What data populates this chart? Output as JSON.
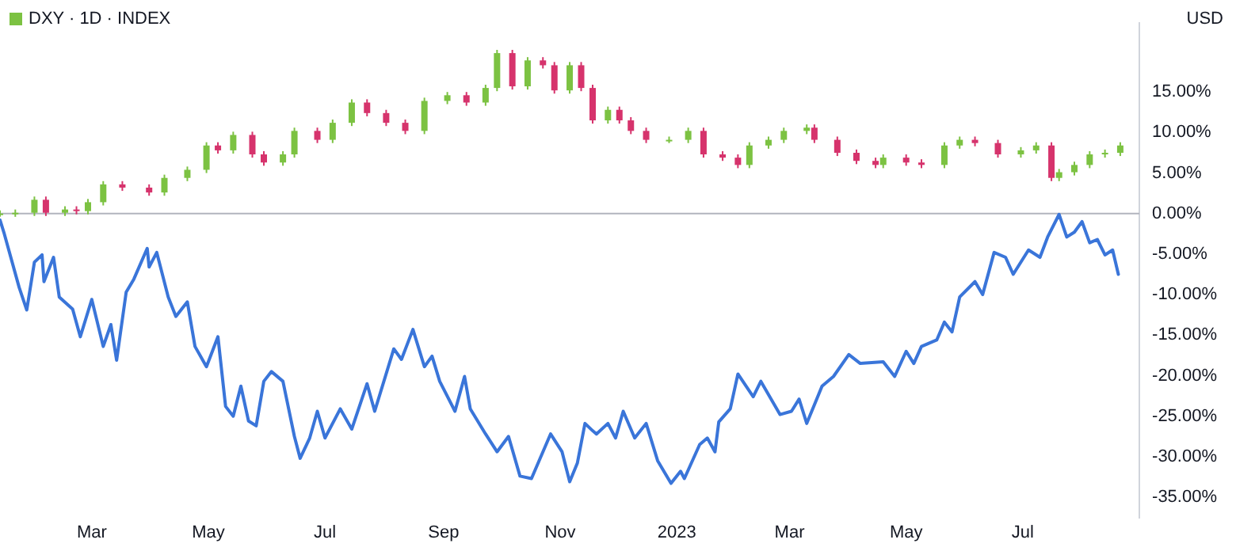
{
  "chart_data": {
    "type": "line",
    "ylabel": "USD",
    "legend": "top left",
    "grid": false,
    "xlim": [
      "2022-01-12",
      "2023-08-31"
    ],
    "xticks": [
      {
        "value": "2022-03-01",
        "label": "Mar"
      },
      {
        "value": "2022-05-01",
        "label": "May"
      },
      {
        "value": "2022-07-01",
        "label": "Jul"
      },
      {
        "value": "2022-09-01",
        "label": "Sep"
      },
      {
        "value": "2022-11-01",
        "label": "Nov"
      },
      {
        "value": "2023-01-01",
        "label": "2023"
      },
      {
        "value": "2023-03-01",
        "label": "Mar"
      },
      {
        "value": "2023-05-01",
        "label": "May"
      },
      {
        "value": "2023-07-01",
        "label": "Jul"
      }
    ],
    "ylim": [
      -37.5,
      23.5
    ],
    "yticks": [
      {
        "value": 15,
        "label": "15.00%"
      },
      {
        "value": 10,
        "label": "10.00%"
      },
      {
        "value": 5,
        "label": "5.00%"
      },
      {
        "value": 0,
        "label": "0.00%"
      },
      {
        "value": -5,
        "label": "-5.00%"
      },
      {
        "value": -10,
        "label": "-10.00%"
      },
      {
        "value": -15,
        "label": "-15.00%"
      },
      {
        "value": -20,
        "label": "-20.00%"
      },
      {
        "value": -25,
        "label": "-25.00%"
      },
      {
        "value": -30,
        "label": "-30.00%"
      },
      {
        "value": -35,
        "label": "-35.00%"
      }
    ],
    "ref_lines": [
      {
        "axis": "y",
        "value": 0,
        "color": "#b2b5be"
      }
    ],
    "series": [
      {
        "color": "#3a75d9",
        "x": [
          "2022-01-12",
          "2022-01-14",
          "2022-01-22",
          "2022-01-26",
          "2022-01-30",
          "2022-02-03",
          "2022-02-04",
          "2022-02-09",
          "2022-02-12",
          "2022-02-19",
          "2022-02-23",
          "2022-03-01",
          "2022-03-07",
          "2022-03-11",
          "2022-03-14",
          "2022-03-19",
          "2022-03-23",
          "2022-03-30",
          "2022-03-31",
          "2022-04-04",
          "2022-04-10",
          "2022-04-14",
          "2022-04-20",
          "2022-04-24",
          "2022-04-30",
          "2022-05-06",
          "2022-05-10",
          "2022-05-14",
          "2022-05-18",
          "2022-05-22",
          "2022-05-26",
          "2022-05-30",
          "2022-06-03",
          "2022-06-09",
          "2022-06-15",
          "2022-06-18",
          "2022-06-23",
          "2022-06-27",
          "2022-07-01",
          "2022-07-09",
          "2022-07-15",
          "2022-07-23",
          "2022-07-27",
          "2022-08-06",
          "2022-08-10",
          "2022-08-16",
          "2022-08-22",
          "2022-08-26",
          "2022-08-30",
          "2022-09-07",
          "2022-09-12",
          "2022-09-15",
          "2022-09-23",
          "2022-09-29",
          "2022-10-05",
          "2022-10-11",
          "2022-10-17",
          "2022-10-21",
          "2022-10-27",
          "2022-11-02",
          "2022-11-06",
          "2022-11-10",
          "2022-11-14",
          "2022-11-18",
          "2022-11-20",
          "2022-11-26",
          "2022-11-30",
          "2022-12-04",
          "2022-12-10",
          "2022-12-16",
          "2022-12-22",
          "2022-12-29",
          "2023-01-03",
          "2023-01-05",
          "2023-01-13",
          "2023-01-17",
          "2023-01-21",
          "2023-01-23",
          "2023-01-29",
          "2023-02-02",
          "2023-02-10",
          "2023-02-14",
          "2023-02-24",
          "2023-03-02",
          "2023-03-06",
          "2023-03-10",
          "2023-03-18",
          "2023-03-24",
          "2023-04-01",
          "2023-04-07",
          "2023-04-19",
          "2023-04-25",
          "2023-05-01",
          "2023-05-05",
          "2023-05-09",
          "2023-05-17",
          "2023-05-21",
          "2023-05-25",
          "2023-05-29",
          "2023-06-06",
          "2023-06-10",
          "2023-06-16",
          "2023-06-22",
          "2023-06-26",
          "2023-07-04",
          "2023-07-10",
          "2023-07-14",
          "2023-07-20",
          "2023-07-24",
          "2023-07-28",
          "2023-08-01",
          "2023-08-05",
          "2023-08-09",
          "2023-08-13",
          "2023-08-17",
          "2023-08-20"
        ],
        "values": [
          -0.8,
          -2.3,
          -9.1,
          -11.9,
          -6.0,
          -5.1,
          -8.4,
          -5.4,
          -10.3,
          -11.8,
          -15.2,
          -10.6,
          -16.4,
          -13.7,
          -18.1,
          -9.7,
          -8.1,
          -4.3,
          -6.6,
          -4.8,
          -10.3,
          -12.7,
          -10.9,
          -16.4,
          -18.9,
          -15.2,
          -23.8,
          -25.0,
          -21.3,
          -25.6,
          -26.2,
          -20.7,
          -19.5,
          -20.7,
          -27.5,
          -30.2,
          -27.7,
          -24.4,
          -27.7,
          -24.1,
          -26.6,
          -21.0,
          -24.4,
          -16.7,
          -18.0,
          -14.3,
          -18.9,
          -17.6,
          -20.7,
          -24.4,
          -20.1,
          -24.1,
          -27.2,
          -29.4,
          -27.5,
          -32.4,
          -32.7,
          -30.5,
          -27.2,
          -29.4,
          -33.1,
          -30.8,
          -25.9,
          -26.8,
          -27.2,
          -25.9,
          -27.7,
          -24.4,
          -27.7,
          -25.9,
          -30.5,
          -33.3,
          -31.8,
          -32.7,
          -28.5,
          -27.7,
          -29.4,
          -25.7,
          -24.1,
          -19.8,
          -22.6,
          -20.7,
          -24.8,
          -24.4,
          -22.9,
          -25.9,
          -21.3,
          -20.1,
          -17.4,
          -18.5,
          -18.3,
          -20.1,
          -17.0,
          -18.5,
          -16.4,
          -15.6,
          -13.4,
          -14.6,
          -10.3,
          -8.4,
          -10.0,
          -4.8,
          -5.4,
          -7.5,
          -4.5,
          -5.4,
          -2.9,
          -0.1,
          -2.9,
          -2.3,
          -1.0,
          -3.6,
          -3.2,
          -5.1,
          -4.5,
          -7.5
        ]
      },
      {
        "type": "candlestick",
        "name": "DXY · 1D · INDEX",
        "x": [
          "2022-01-12",
          "2022-01-20",
          "2022-01-30",
          "2022-02-05",
          "2022-02-15",
          "2022-02-21",
          "2022-02-27",
          "2022-03-07",
          "2022-03-17",
          "2022-03-31",
          "2022-04-08",
          "2022-04-20",
          "2022-04-30",
          "2022-05-06",
          "2022-05-14",
          "2022-05-24",
          "2022-05-30",
          "2022-06-09",
          "2022-06-15",
          "2022-06-27",
          "2022-07-05",
          "2022-07-15",
          "2022-07-23",
          "2022-08-02",
          "2022-08-12",
          "2022-08-22",
          "2022-09-03",
          "2022-09-13",
          "2022-09-23",
          "2022-09-29",
          "2022-10-07",
          "2022-10-15",
          "2022-10-23",
          "2022-10-29",
          "2022-11-06",
          "2022-11-12",
          "2022-11-18",
          "2022-11-26",
          "2022-12-02",
          "2022-12-08",
          "2022-12-16",
          "2022-12-28",
          "2023-01-07",
          "2023-01-15",
          "2023-01-25",
          "2023-02-02",
          "2023-02-08",
          "2023-02-18",
          "2023-02-26",
          "2023-03-10",
          "2023-03-14",
          "2023-03-26",
          "2023-04-05",
          "2023-04-15",
          "2023-04-19",
          "2023-05-01",
          "2023-05-09",
          "2023-05-21",
          "2023-05-29",
          "2023-06-06",
          "2023-06-18",
          "2023-06-30",
          "2023-07-08",
          "2023-07-16",
          "2023-07-20",
          "2023-07-28",
          "2023-08-05",
          "2023-08-13",
          "2023-08-21"
        ],
        "ohlc": [
          [
            0,
            0.4,
            -0.4,
            0
          ],
          [
            0,
            0.5,
            -0.4,
            0.1
          ],
          [
            0.1,
            2.1,
            -0.3,
            1.7
          ],
          [
            1.7,
            2.1,
            -0.3,
            0.1
          ],
          [
            0.1,
            0.9,
            -0.3,
            0.5
          ],
          [
            0.5,
            0.9,
            -0.1,
            0.3
          ],
          [
            0.3,
            1.8,
            -0.1,
            1.4
          ],
          [
            1.4,
            4.0,
            1.0,
            3.6
          ],
          [
            3.6,
            4.0,
            2.8,
            3.2
          ],
          [
            3.2,
            3.6,
            2.2,
            2.6
          ],
          [
            2.6,
            4.8,
            2.2,
            4.4
          ],
          [
            4.4,
            5.8,
            4.0,
            5.4
          ],
          [
            5.4,
            8.8,
            5.0,
            8.4
          ],
          [
            8.4,
            8.8,
            7.4,
            7.8
          ],
          [
            7.8,
            10.1,
            7.4,
            9.7
          ],
          [
            9.7,
            10.1,
            6.9,
            7.3
          ],
          [
            7.3,
            7.7,
            5.9,
            6.3
          ],
          [
            6.3,
            7.7,
            5.9,
            7.3
          ],
          [
            7.3,
            10.6,
            6.9,
            10.2
          ],
          [
            10.2,
            10.6,
            8.7,
            9.1
          ],
          [
            9.1,
            11.6,
            8.7,
            11.2
          ],
          [
            11.2,
            14.1,
            10.8,
            13.7
          ],
          [
            13.7,
            14.1,
            12.0,
            12.4
          ],
          [
            12.4,
            12.8,
            10.8,
            11.2
          ],
          [
            11.2,
            11.6,
            9.8,
            10.2
          ],
          [
            10.2,
            14.3,
            9.8,
            13.9
          ],
          [
            13.9,
            15.0,
            13.5,
            14.6
          ],
          [
            14.6,
            15.0,
            13.3,
            13.7
          ],
          [
            13.7,
            15.9,
            13.3,
            15.5
          ],
          [
            15.5,
            20.2,
            15.1,
            19.8
          ],
          [
            19.8,
            20.2,
            15.3,
            15.7
          ],
          [
            15.7,
            19.3,
            15.3,
            18.9
          ],
          [
            18.9,
            19.3,
            17.9,
            18.3
          ],
          [
            18.3,
            18.7,
            14.8,
            15.2
          ],
          [
            15.2,
            18.7,
            14.8,
            18.3
          ],
          [
            18.3,
            18.7,
            15.1,
            15.5
          ],
          [
            15.5,
            15.9,
            11.1,
            11.5
          ],
          [
            11.5,
            13.2,
            11.1,
            12.8
          ],
          [
            12.8,
            13.2,
            11.1,
            11.5
          ],
          [
            11.5,
            11.9,
            9.8,
            10.2
          ],
          [
            10.2,
            10.6,
            8.7,
            9.1
          ],
          [
            9.1,
            9.5,
            8.7,
            9.1
          ],
          [
            9.1,
            10.6,
            8.7,
            10.2
          ],
          [
            10.2,
            10.6,
            6.9,
            7.3
          ],
          [
            7.3,
            7.7,
            6.5,
            6.9
          ],
          [
            6.9,
            7.3,
            5.6,
            6.0
          ],
          [
            6.0,
            8.8,
            5.6,
            8.4
          ],
          [
            8.4,
            9.5,
            8.0,
            9.1
          ],
          [
            9.1,
            10.6,
            8.7,
            10.2
          ],
          [
            10.2,
            11.0,
            9.8,
            10.6
          ],
          [
            10.6,
            11.0,
            8.7,
            9.1
          ],
          [
            9.1,
            9.5,
            7.1,
            7.5
          ],
          [
            7.5,
            7.9,
            6.1,
            6.5
          ],
          [
            6.5,
            6.9,
            5.6,
            6.0
          ],
          [
            6.0,
            7.3,
            5.6,
            6.9
          ],
          [
            6.9,
            7.3,
            5.9,
            6.3
          ],
          [
            6.3,
            6.7,
            5.6,
            6.0
          ],
          [
            6.0,
            8.8,
            5.6,
            8.4
          ],
          [
            8.4,
            9.5,
            8.0,
            9.1
          ],
          [
            9.1,
            9.5,
            8.3,
            8.7
          ],
          [
            8.7,
            9.1,
            6.9,
            7.3
          ],
          [
            7.3,
            8.2,
            6.9,
            7.8
          ],
          [
            7.8,
            8.8,
            7.4,
            8.4
          ],
          [
            8.4,
            8.8,
            4.0,
            4.4
          ],
          [
            4.4,
            5.5,
            4.0,
            5.1
          ],
          [
            5.1,
            6.4,
            4.7,
            6.0
          ],
          [
            6.0,
            7.7,
            5.6,
            7.3
          ],
          [
            7.3,
            7.9,
            6.9,
            7.5
          ],
          [
            7.5,
            8.8,
            7.1,
            8.4
          ]
        ],
        "colors": [
          "#7cc242",
          "#7cc242",
          "#7cc242",
          "#d6336c",
          "#7cc242",
          "#d6336c",
          "#7cc242",
          "#7cc242",
          "#d6336c",
          "#d6336c",
          "#7cc242",
          "#7cc242",
          "#7cc242",
          "#d6336c",
          "#7cc242",
          "#d6336c",
          "#d6336c",
          "#7cc242",
          "#7cc242",
          "#d6336c",
          "#7cc242",
          "#7cc242",
          "#d6336c",
          "#d6336c",
          "#d6336c",
          "#7cc242",
          "#7cc242",
          "#d6336c",
          "#7cc242",
          "#7cc242",
          "#d6336c",
          "#7cc242",
          "#d6336c",
          "#d6336c",
          "#7cc242",
          "#d6336c",
          "#d6336c",
          "#7cc242",
          "#d6336c",
          "#d6336c",
          "#d6336c",
          "#7cc242",
          "#7cc242",
          "#d6336c",
          "#d6336c",
          "#d6336c",
          "#7cc242",
          "#7cc242",
          "#7cc242",
          "#7cc242",
          "#d6336c",
          "#d6336c",
          "#d6336c",
          "#d6336c",
          "#7cc242",
          "#d6336c",
          "#d6336c",
          "#7cc242",
          "#7cc242",
          "#d6336c",
          "#d6336c",
          "#7cc242",
          "#7cc242",
          "#d6336c",
          "#7cc242",
          "#7cc242",
          "#7cc242",
          "#7cc242",
          "#7cc242"
        ]
      }
    ]
  }
}
